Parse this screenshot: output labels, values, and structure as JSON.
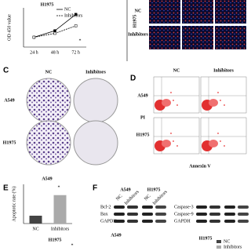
{
  "panel_a": {
    "type": "line",
    "title": "H1975",
    "y_label": "OD 450 value",
    "categories": [
      "24 h",
      "48 h",
      "72 h"
    ],
    "series": [
      {
        "name": "NC",
        "color": "#000000",
        "values": [
          0.3,
          0.5,
          1.0
        ]
      },
      {
        "name": "Inhibitors",
        "color": "#000000",
        "values": [
          0.3,
          0.42,
          0.65
        ]
      }
    ],
    "ylim": [
      0,
      1.2
    ],
    "annotation": "*"
  },
  "panel_b": {
    "rows": [
      "NC",
      "Inhibitors"
    ],
    "cell_line": "H1975"
  },
  "panel_c": {
    "letter": "C",
    "columns": [
      "NC",
      "Inhibitors"
    ],
    "rows": [
      "A549",
      "H1975"
    ]
  },
  "panel_d": {
    "letter": "D",
    "columns": [
      "NC",
      "Inhibitors"
    ],
    "rows": [
      "A549",
      "H1975"
    ],
    "y_label": "PI",
    "x_label": "Annexin V"
  },
  "panel_e": {
    "letter": "E",
    "type": "bar",
    "title": "A549",
    "y_label": "Apoptotic rate (%)",
    "categories": [
      "NC",
      "Inhibitors"
    ],
    "values": [
      8,
      29
    ],
    "colors": [
      "#444444",
      "#aaaaaa"
    ],
    "ylim": [
      0,
      40
    ],
    "annotation": "*"
  },
  "panel_f": {
    "letter": "F",
    "groups": [
      "A549",
      "H1975"
    ],
    "lanes": [
      "NC",
      "Inhibitors"
    ],
    "left_blots": [
      "Bcl-2",
      "Bax",
      "GAPDH"
    ],
    "right_blots": [
      "Caspase-3",
      "Caspase-9",
      "GAPDH"
    ]
  },
  "panel_g": {
    "titles": [
      "A549",
      "H1975"
    ],
    "legend": [
      "NC",
      "Inhibitors"
    ],
    "annotation": "*"
  }
}
